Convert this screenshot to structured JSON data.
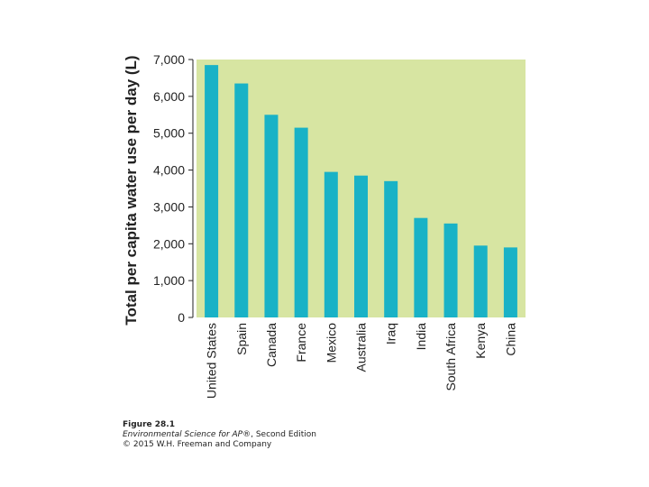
{
  "colors": {
    "plot_bg": "#d7e5a2",
    "bar": "#19b2c6",
    "text": "#222222"
  },
  "chart_data": {
    "type": "bar",
    "title": "",
    "xlabel": "",
    "ylabel": "Total per capita water use per day (L)",
    "categories": [
      "United States",
      "Spain",
      "Canada",
      "France",
      "Mexico",
      "Australia",
      "Iraq",
      "India",
      "South Africa",
      "Kenya",
      "China"
    ],
    "values": [
      6850,
      6350,
      5500,
      5150,
      3950,
      3850,
      3700,
      2700,
      2550,
      1950,
      1900
    ],
    "ylim": [
      0,
      7000
    ],
    "yticks": [
      0,
      1000,
      2000,
      3000,
      4000,
      5000,
      6000,
      7000
    ],
    "ytick_labels": [
      "0",
      "1,000",
      "2,000",
      "3,000",
      "4,000",
      "5,000",
      "6,000",
      "7,000"
    ],
    "grid": false
  },
  "caption": {
    "figure_label": "Figure 28.1",
    "book_title": "Environmental Science for AP®",
    "edition": ", Second Edition",
    "copyright": "© 2015 W.H. Freeman and Company"
  }
}
